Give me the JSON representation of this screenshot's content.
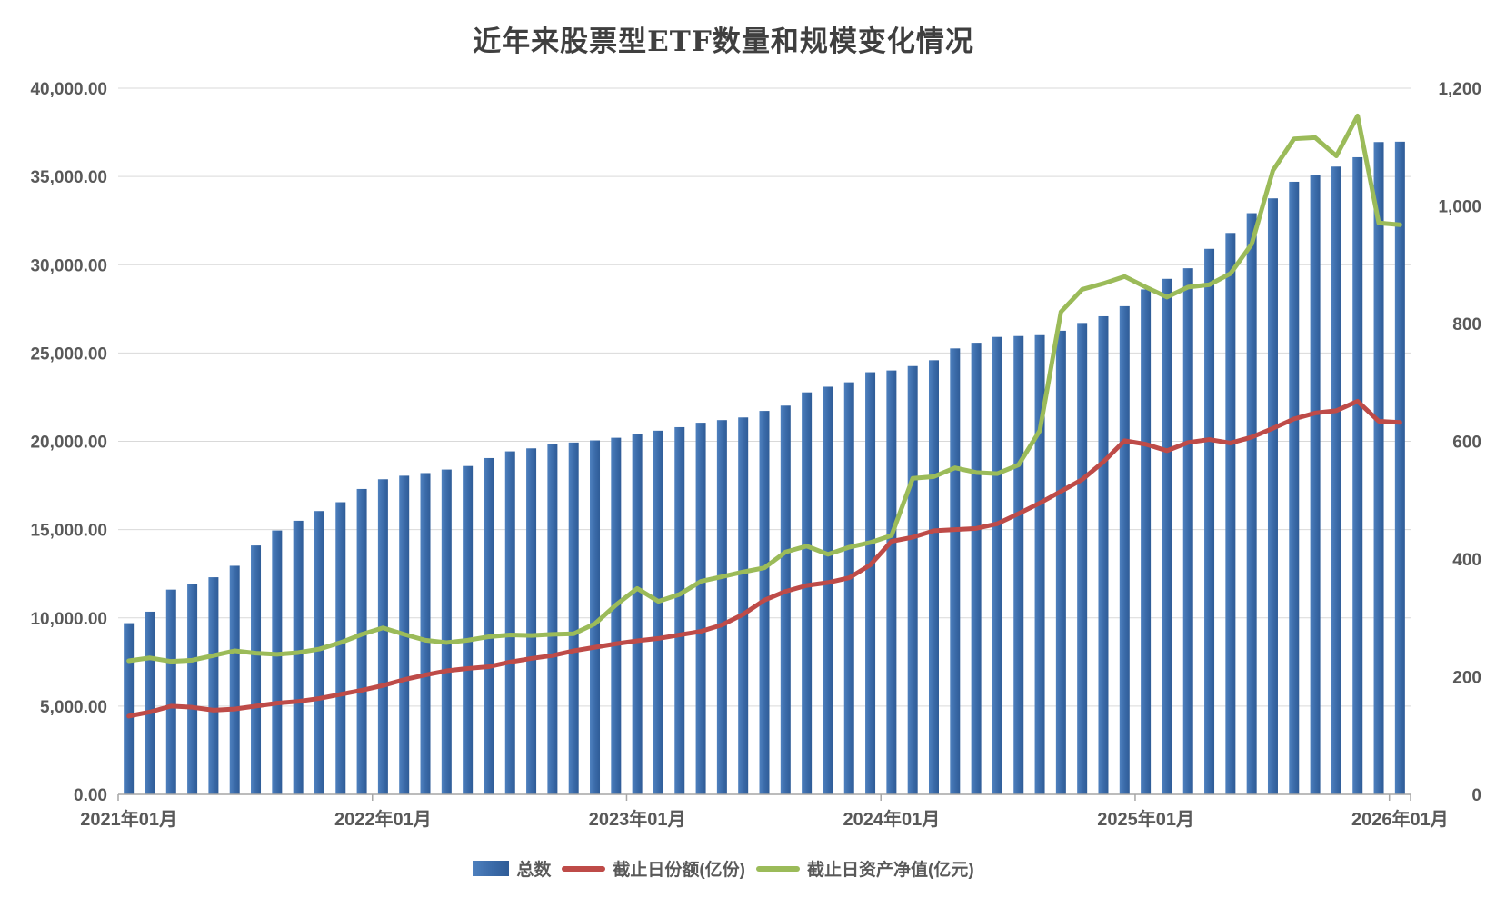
{
  "chart_data": {
    "type": "bar",
    "subtype": "combo-bar-line-dual-axis",
    "title": "近年来股票型ETF数量和规模变化情况",
    "categories": [
      "2021年01月",
      "2021年02月",
      "2021年03月",
      "2021年04月",
      "2021年05月",
      "2021年06月",
      "2021年07月",
      "2021年08月",
      "2021年09月",
      "2021年10月",
      "2021年11月",
      "2021年12月",
      "2022年01月",
      "2022年02月",
      "2022年03月",
      "2022年04月",
      "2022年05月",
      "2022年06月",
      "2022年07月",
      "2022年08月",
      "2022年09月",
      "2022年10月",
      "2022年11月",
      "2022年12月",
      "2023年01月",
      "2023年02月",
      "2023年03月",
      "2023年04月",
      "2023年05月",
      "2023年06月",
      "2023年07月",
      "2023年08月",
      "2023年09月",
      "2023年10月",
      "2023年11月",
      "2023年12月",
      "2024年01月",
      "2024年02月",
      "2024年03月",
      "2024年04月",
      "2024年05月",
      "2024年06月",
      "2024年07月",
      "2024年08月",
      "2024年09月",
      "2024年10月",
      "2024年11月",
      "2024年12月",
      "2025年01月",
      "2025年02月",
      "2025年03月",
      "2025年04月",
      "2025年05月",
      "2025年06月",
      "2025年07月",
      "2025年08月",
      "2025年09月",
      "2025年10月",
      "2025年11月",
      "2025年12月",
      "2026年01月"
    ],
    "series": [
      {
        "name": "总数",
        "type": "bar",
        "axis": "left",
        "color": "#3e6eb0",
        "values": [
          9700,
          10350,
          11600,
          11900,
          12300,
          12950,
          14100,
          14950,
          15500,
          16050,
          16550,
          17300,
          17850,
          18050,
          18200,
          18400,
          18600,
          19050,
          19430,
          19600,
          19830,
          19930,
          20050,
          20200,
          20400,
          20600,
          20800,
          21050,
          21200,
          21350,
          21720,
          22020,
          22770,
          23090,
          23340,
          23910,
          24010,
          24260,
          24590,
          25260,
          25580,
          25910,
          25960,
          26010,
          26260,
          26700,
          27080,
          27650,
          28600,
          29200,
          29800,
          30900,
          31800,
          32920,
          33760,
          34700,
          35080,
          35560,
          36090,
          36950,
          36970
        ]
      },
      {
        "name": "截止日份额(亿份)",
        "type": "line",
        "axis": "right",
        "color": "#be4b48",
        "values": [
          133,
          140,
          150,
          148,
          143,
          145,
          150,
          155,
          158,
          163,
          170,
          177,
          185,
          195,
          203,
          210,
          214,
          217,
          225,
          231,
          236,
          244,
          250,
          256,
          261,
          265,
          271,
          277,
          288,
          306,
          330,
          345,
          355,
          360,
          368,
          390,
          430,
          437,
          448,
          450,
          452,
          460,
          477,
          495,
          515,
          535,
          565,
          601,
          595,
          584,
          598,
          603,
          597,
          607,
          622,
          638,
          648,
          652,
          668,
          634,
          632
        ]
      },
      {
        "name": "截止日资产净值(亿元)",
        "type": "line",
        "axis": "right",
        "color": "#9bbb59",
        "values": [
          227,
          232,
          226,
          228,
          236,
          244,
          240,
          238,
          241,
          247,
          258,
          272,
          283,
          272,
          262,
          258,
          262,
          268,
          271,
          270,
          272,
          273,
          290,
          322,
          350,
          328,
          340,
          362,
          370,
          378,
          385,
          412,
          422,
          408,
          420,
          428,
          440,
          537,
          540,
          555,
          547,
          545,
          560,
          618,
          820,
          858,
          868,
          880,
          862,
          845,
          862,
          866,
          885,
          935,
          1060,
          1114,
          1116,
          1085,
          1153,
          971,
          968
        ]
      }
    ],
    "left_axis": {
      "min": 0,
      "max": 40000,
      "step": 5000,
      "tick_labels": [
        "0.00",
        "5,000.00",
        "10,000.00",
        "15,000.00",
        "20,000.00",
        "25,000.00",
        "30,000.00",
        "35,000.00",
        "40,000.00"
      ]
    },
    "right_axis": {
      "min": 0,
      "max": 1200,
      "step": 200,
      "tick_labels": [
        "0",
        "200",
        "400",
        "600",
        "800",
        "1,000",
        "1,200"
      ]
    },
    "x_axis": {
      "visible_tick_labels": [
        "2021年01月",
        "2022年01月",
        "2023年01月",
        "2024年01月",
        "2025年01月",
        "2026年01月"
      ],
      "label_indices": [
        0,
        12,
        24,
        36,
        48,
        60
      ]
    },
    "legend_position": "bottom",
    "grid": true,
    "colors": {
      "grid": "#d9d9d9",
      "axis_line": "#a6a6a6",
      "tick": "#a6a6a6",
      "text": "#595959",
      "title": "#3f3f3f",
      "background": "#ffffff",
      "bar_gradient": [
        "#4e80be",
        "#3a6aa8",
        "#2f5c97"
      ]
    }
  },
  "legend": {
    "items": [
      {
        "label": "总数"
      },
      {
        "label": "截止日份额(亿份)"
      },
      {
        "label": "截止日资产净值(亿元)"
      }
    ]
  }
}
